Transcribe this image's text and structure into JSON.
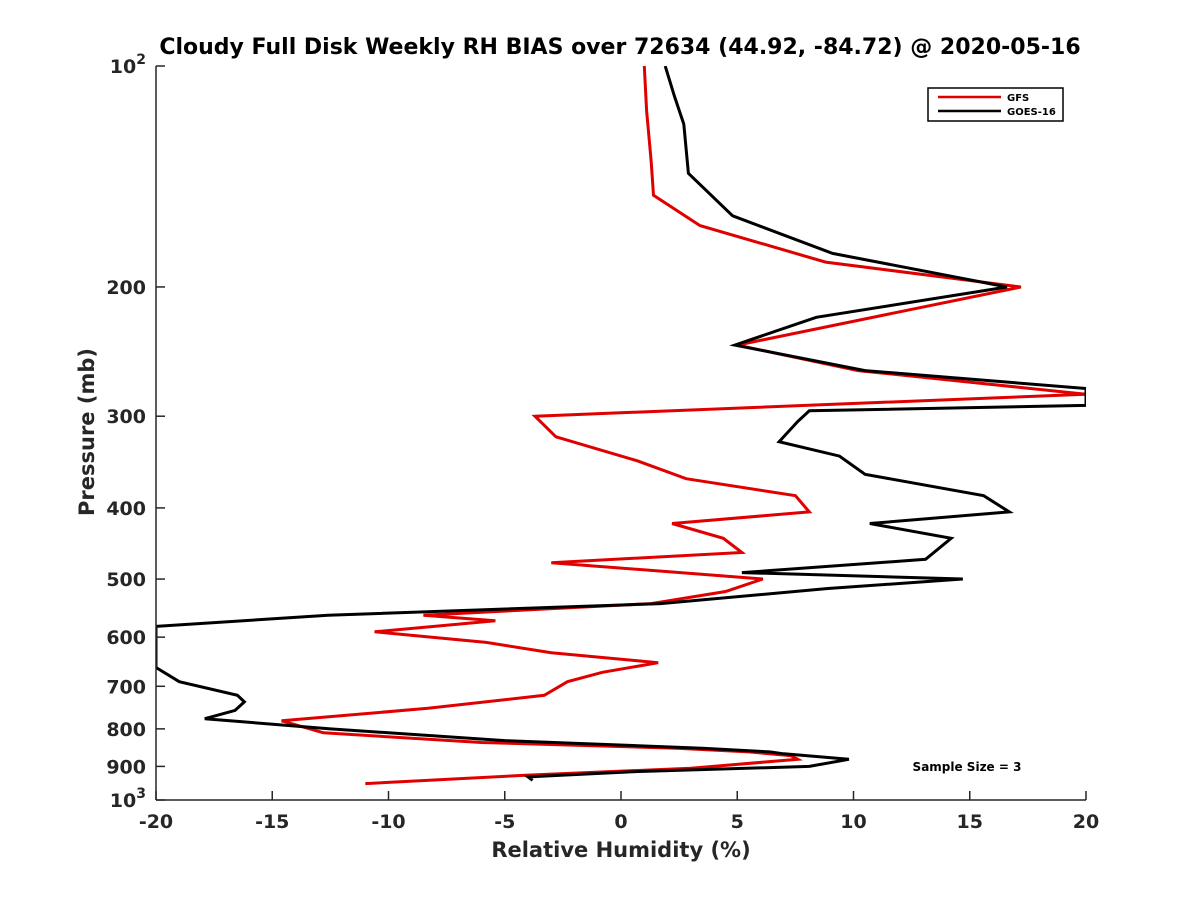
{
  "chart_data": {
    "type": "line",
    "title": "Cloudy Full Disk Weekly RH BIAS over 72634 (44.92, -84.72) @ 2020-05-16",
    "xlabel": "Relative Humidity (%)",
    "ylabel": "Pressure (mb)",
    "xlim": [
      -20,
      20
    ],
    "ylim": [
      100,
      1000
    ],
    "y_scale": "log",
    "y_reversed": true,
    "grid": false,
    "legend_position": "top-right",
    "x_ticks": [
      "-20",
      "-15",
      "-10",
      "-5",
      "0",
      "5",
      "10",
      "15",
      "20"
    ],
    "y_ticks": [
      {
        "value": 100,
        "base": "10",
        "exp": "2"
      },
      {
        "value": 200,
        "label": "200"
      },
      {
        "value": 300,
        "label": "300"
      },
      {
        "value": 400,
        "label": "400"
      },
      {
        "value": 500,
        "label": "500"
      },
      {
        "value": 600,
        "label": "600"
      },
      {
        "value": 700,
        "label": "700"
      },
      {
        "value": 800,
        "label": "800"
      },
      {
        "value": 900,
        "label": "900"
      },
      {
        "value": 1000,
        "base": "10",
        "exp": "3"
      }
    ],
    "annotation": "Sample Size = 3",
    "series": [
      {
        "name": "GFS",
        "color": "#e00000",
        "points": [
          [
            1.0,
            100
          ],
          [
            1.1,
            115
          ],
          [
            1.3,
            135
          ],
          [
            1.4,
            150
          ],
          [
            3.4,
            165
          ],
          [
            8.8,
            185
          ],
          [
            17.2,
            200
          ],
          [
            5.0,
            240
          ],
          [
            10.2,
            260
          ],
          [
            20.0,
            280
          ],
          [
            -3.7,
            300
          ],
          [
            -2.8,
            320
          ],
          [
            0.7,
            345
          ],
          [
            2.8,
            365
          ],
          [
            7.5,
            385
          ],
          [
            8.1,
            405
          ],
          [
            2.2,
            420
          ],
          [
            4.4,
            440
          ],
          [
            5.2,
            460
          ],
          [
            -3.0,
            475
          ],
          [
            6.1,
            500
          ],
          [
            4.5,
            520
          ],
          [
            1.3,
            540
          ],
          [
            -8.5,
            560
          ],
          [
            -5.4,
            570
          ],
          [
            -10.6,
            590
          ],
          [
            -5.8,
            610
          ],
          [
            -3.0,
            630
          ],
          [
            1.6,
            650
          ],
          [
            -0.8,
            670
          ],
          [
            -2.3,
            690
          ],
          [
            -3.3,
            720
          ],
          [
            -8.3,
            750
          ],
          [
            -14.6,
            780
          ],
          [
            -12.8,
            810
          ],
          [
            -6.0,
            835
          ],
          [
            2.4,
            850
          ],
          [
            5.5,
            860
          ],
          [
            7.3,
            870
          ],
          [
            7.6,
            880
          ],
          [
            3.0,
            905
          ],
          [
            -4.0,
            925
          ],
          [
            -11.0,
            950
          ]
        ]
      },
      {
        "name": "GOES-16",
        "color": "#000000",
        "points": [
          [
            1.9,
            100
          ],
          [
            2.3,
            110
          ],
          [
            2.7,
            120
          ],
          [
            2.9,
            140
          ],
          [
            4.8,
            160
          ],
          [
            9.1,
            180
          ],
          [
            16.6,
            200
          ],
          [
            8.4,
            220
          ],
          [
            4.9,
            240
          ],
          [
            10.5,
            260
          ],
          [
            20.0,
            275
          ],
          [
            20.0,
            290
          ],
          [
            8.1,
            295
          ],
          [
            7.6,
            305
          ],
          [
            6.8,
            325
          ],
          [
            9.4,
            340
          ],
          [
            10.5,
            360
          ],
          [
            15.6,
            385
          ],
          [
            16.7,
            405
          ],
          [
            10.7,
            420
          ],
          [
            14.2,
            440
          ],
          [
            13.1,
            470
          ],
          [
            5.2,
            490
          ],
          [
            14.7,
            500
          ],
          [
            8.9,
            515
          ],
          [
            1.7,
            540
          ],
          [
            -12.6,
            560
          ],
          [
            -20.0,
            580
          ],
          [
            -20.0,
            660
          ],
          [
            -19.0,
            690
          ],
          [
            -16.5,
            720
          ],
          [
            -16.2,
            735
          ],
          [
            -16.6,
            755
          ],
          [
            -17.9,
            775
          ],
          [
            -12.5,
            800
          ],
          [
            -5.0,
            830
          ],
          [
            3.5,
            850
          ],
          [
            6.4,
            860
          ],
          [
            7.0,
            865
          ],
          [
            9.8,
            880
          ],
          [
            8.1,
            900
          ],
          [
            0.5,
            915
          ],
          [
            -4.0,
            930
          ],
          [
            -3.8,
            940
          ]
        ]
      }
    ]
  }
}
